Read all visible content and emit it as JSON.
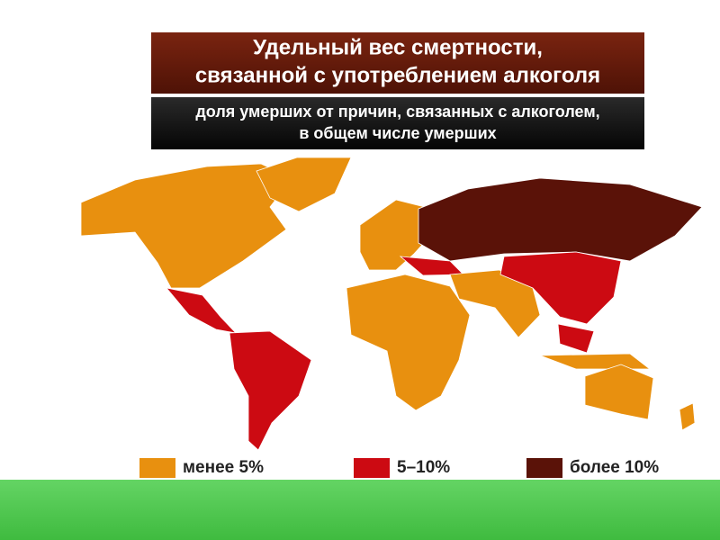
{
  "header": {
    "title": [
      "Удельный вес смертности,",
      "связанной с употреблением алкоголя"
    ],
    "subtitle": [
      "доля умерших от причин, связанных с алкоголем,",
      "в общем числе умерших"
    ]
  },
  "legend": {
    "items": [
      {
        "label": "менее 5%",
        "color": "#e8900f"
      },
      {
        "label": "5–10%",
        "color": "#cc0a12"
      },
      {
        "label": "более 10%",
        "color": "#5a1208"
      }
    ]
  }
}
